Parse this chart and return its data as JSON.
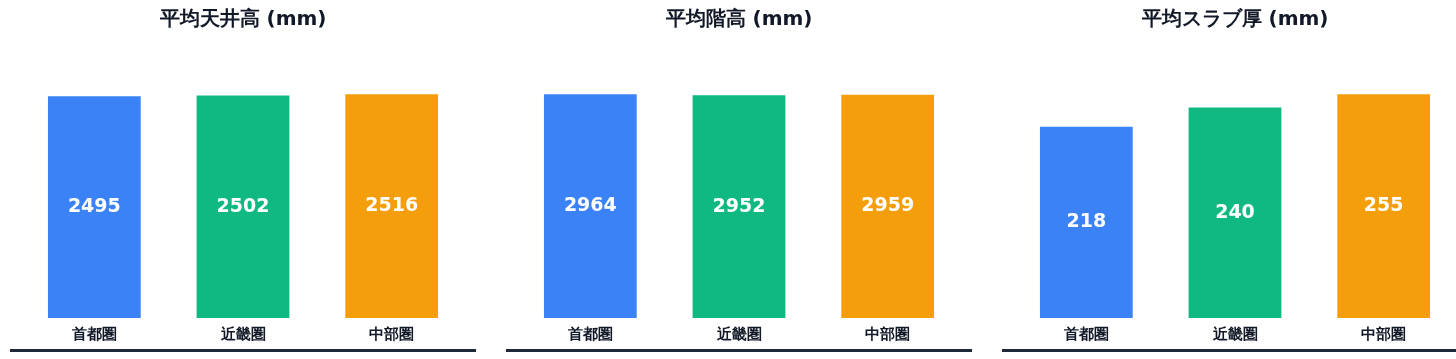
{
  "chart_data": [
    {
      "type": "bar",
      "title": "平均天井高 (mm)",
      "categories": [
        "首都圏",
        "近畿圏",
        "中部圏"
      ],
      "values": [
        2495,
        2502,
        2516
      ],
      "colors": [
        "#3b82f6",
        "#10b981",
        "#f59e0b"
      ],
      "tick_labels": "x",
      "data_labels": true,
      "grid": false,
      "legend": false
    },
    {
      "type": "bar",
      "title": "平均階高 (mm)",
      "categories": [
        "首都圏",
        "近畿圏",
        "中部圏"
      ],
      "values": [
        2964,
        2952,
        2959
      ],
      "colors": [
        "#3b82f6",
        "#10b981",
        "#f59e0b"
      ],
      "tick_labels": "x",
      "data_labels": true,
      "grid": false,
      "legend": false
    },
    {
      "type": "bar",
      "title": "平均スラブ厚 (mm)",
      "categories": [
        "首都圏",
        "近畿圏",
        "中部圏"
      ],
      "values": [
        218,
        240,
        255
      ],
      "colors": [
        "#3b82f6",
        "#10b981",
        "#f59e0b"
      ],
      "tick_labels": "x",
      "data_labels": true,
      "grid": false,
      "legend": false
    }
  ]
}
